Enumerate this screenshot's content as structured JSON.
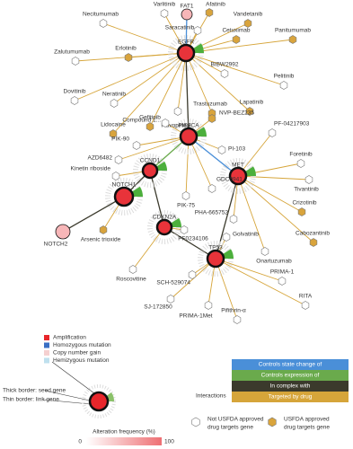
{
  "genes": [
    {
      "label": "FAT1",
      "seed": false
    },
    {
      "label": "EGFR",
      "seed": true
    },
    {
      "label": "PIK3CA",
      "seed": true
    },
    {
      "label": "CCND1",
      "seed": true
    },
    {
      "label": "NOTCH1",
      "seed": true
    },
    {
      "label": "NOTCH2",
      "seed": false
    },
    {
      "label": "MET",
      "seed": true
    },
    {
      "label": "CDKN2A",
      "seed": true
    },
    {
      "label": "TP53",
      "seed": true
    }
  ],
  "gene_links": [
    {
      "source": 1,
      "target": 0,
      "kind": 0
    },
    {
      "source": 1,
      "target": 2,
      "kind": 2
    },
    {
      "source": 2,
      "target": 3,
      "kind": 1
    },
    {
      "source": 2,
      "target": 6,
      "kind": 0
    },
    {
      "source": 3,
      "target": 4,
      "kind": 2
    },
    {
      "source": 3,
      "target": 7,
      "kind": 2
    },
    {
      "source": 4,
      "target": 5,
      "kind": 2
    },
    {
      "source": 7,
      "target": 8,
      "kind": 2
    },
    {
      "source": 6,
      "target": 8,
      "kind": 2
    }
  ],
  "drugs": [
    {
      "label": "Necitumumab",
      "approved": false,
      "target": 1
    },
    {
      "label": "Varlitinib",
      "approved": false,
      "target": 1
    },
    {
      "label": "Afatinib",
      "approved": true,
      "target": 1
    },
    {
      "label": "Vandetanib",
      "approved": true,
      "target": 1
    },
    {
      "label": "Saracatinib",
      "approved": false,
      "target": 1
    },
    {
      "label": "Cetuximab",
      "approved": true,
      "target": 1
    },
    {
      "label": "Panitumumab",
      "approved": true,
      "target": 1
    },
    {
      "label": "Zalutumumab",
      "approved": false,
      "target": 1
    },
    {
      "label": "Erlotinib",
      "approved": true,
      "target": 1
    },
    {
      "label": "BIBW2992",
      "approved": false,
      "target": 1
    },
    {
      "label": "Dovitinib",
      "approved": false,
      "target": 1
    },
    {
      "label": "Neratinib",
      "approved": false,
      "target": 1
    },
    {
      "label": "Pelitinib",
      "approved": false,
      "target": 1
    },
    {
      "label": "Trastuzumab",
      "approved": true,
      "target": 1
    },
    {
      "label": "Lapatinib",
      "approved": true,
      "target": 1
    },
    {
      "label": "Lidocaine",
      "approved": true,
      "target": 1
    },
    {
      "label": "Gefitinib",
      "approved": true,
      "target": 1
    },
    {
      "label": "Flavopiridol",
      "approved": false,
      "target": 1
    },
    {
      "label": "Compound 1...",
      "approved": false,
      "target": 2
    },
    {
      "label": "NVP-BEZ235",
      "approved": true,
      "target": 2
    },
    {
      "label": "PIK-90",
      "approved": false,
      "target": 2
    },
    {
      "label": "PI-103",
      "approved": false,
      "target": 2
    },
    {
      "label": "AZD6482",
      "approved": false,
      "target": 2
    },
    {
      "label": "Kinetin riboside",
      "approved": false,
      "target": 3
    },
    {
      "label": "PIK-75",
      "approved": false,
      "target": 2
    },
    {
      "label": "GDC0941",
      "approved": false,
      "target": 2
    },
    {
      "label": "PF-04217903",
      "approved": false,
      "target": 6
    },
    {
      "label": "Foretinib",
      "approved": false,
      "target": 6
    },
    {
      "label": "Tivantinib",
      "approved": false,
      "target": 6
    },
    {
      "label": "Crizotinib",
      "approved": true,
      "target": 6
    },
    {
      "label": "Cabozantinib",
      "approved": true,
      "target": 6
    },
    {
      "label": "PHA-665752",
      "approved": false,
      "target": 6
    },
    {
      "label": "Golvatinib",
      "approved": false,
      "target": 8
    },
    {
      "label": "Onartuzumab",
      "approved": false,
      "target": 6
    },
    {
      "label": "PRIMA-1",
      "approved": false,
      "target": 8
    },
    {
      "label": "RITA",
      "approved": false,
      "target": 8
    },
    {
      "label": "Pifithrin-α",
      "approved": false,
      "target": 8
    },
    {
      "label": "PRIMA-1Met",
      "approved": false,
      "target": 8
    },
    {
      "label": "SJ-172850",
      "approved": false,
      "target": 8
    },
    {
      "label": "SCH-529074",
      "approved": false,
      "target": 8
    },
    {
      "label": "Roscovitine",
      "approved": false,
      "target": 7
    },
    {
      "label": "PF0234106",
      "approved": false,
      "target": 7
    },
    {
      "label": "Arsenic trioxide",
      "approved": true,
      "target": 4
    }
  ],
  "legend": {
    "alterations": [
      {
        "label": "Amplification",
        "color": "#e8262b"
      },
      {
        "label": "Homozygous mutation",
        "color": "#3a6fc4"
      },
      {
        "label": "Copy number gain",
        "color": "#f5d0d0"
      },
      {
        "label": "Hemizygous mutation",
        "color": "#bfe0ee"
      }
    ],
    "borders": [
      "Thick border: seed gene",
      "Thin border: link gene"
    ],
    "frequency": {
      "title": "Alteration frequency (%)",
      "min": 0,
      "max": 100
    },
    "interactions": {
      "title": "Interactions",
      "items": [
        {
          "label": "Controls state change of",
          "color": "#4a8fd8"
        },
        {
          "label": "Controls expression of",
          "color": "#6aaa4c"
        },
        {
          "label": "In complex with",
          "color": "#3b3a2c"
        },
        {
          "label": "Targeted by drug",
          "color": "#d6a53a"
        }
      ]
    },
    "approval": [
      {
        "lines": [
          "Not USFDA approved",
          "drug targets gene"
        ],
        "color": "#ffffff"
      },
      {
        "lines": [
          "USFDA approved",
          "drug targets gene"
        ],
        "color": "#d9a43c"
      }
    ]
  }
}
